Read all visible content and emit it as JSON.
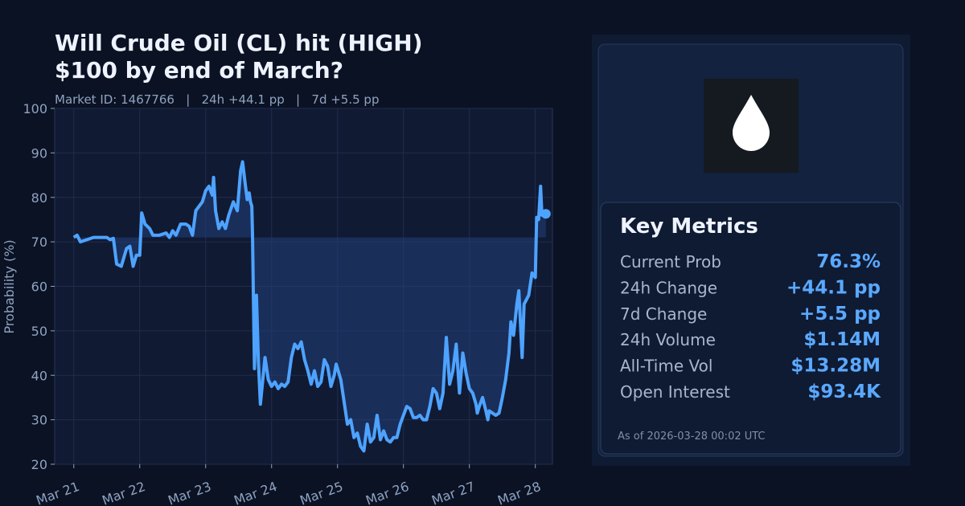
{
  "chart_data": {
    "type": "line",
    "title": [
      "Will Crude Oil (CL) hit (HIGH)",
      "$100 by end of March?"
    ],
    "subtitle": "Market ID: 1467766   |   24h +44.1 pp   |   7d +5.5 pp",
    "y_label": "Probability (%)",
    "color": "#4da3ff",
    "grid": true,
    "xlim": [
      -0.29,
      7.26
    ],
    "ylim": [
      20,
      100
    ],
    "yticks": [
      20,
      30,
      40,
      50,
      60,
      70,
      80,
      90,
      100
    ],
    "xticks": [
      {
        "value": 0,
        "label": "Mar 21"
      },
      {
        "value": 1,
        "label": "Mar 22"
      },
      {
        "value": 2,
        "label": "Mar 23"
      },
      {
        "value": 3,
        "label": "Mar 24"
      },
      {
        "value": 4,
        "label": "Mar 25"
      },
      {
        "value": 5,
        "label": "Mar 26"
      },
      {
        "value": 6,
        "label": "Mar 27"
      },
      {
        "value": 7,
        "label": "Mar 28"
      }
    ],
    "x": [
      0,
      0.05,
      0.1,
      0.2,
      0.3,
      0.5,
      0.55,
      0.6,
      0.65,
      0.72,
      0.8,
      0.85,
      0.9,
      0.95,
      1.0,
      1.03,
      1.08,
      1.15,
      1.2,
      1.3,
      1.4,
      1.45,
      1.5,
      1.55,
      1.62,
      1.7,
      1.75,
      1.8,
      1.85,
      1.95,
      2.0,
      2.05,
      2.1,
      2.12,
      2.15,
      2.2,
      2.25,
      2.3,
      2.35,
      2.42,
      2.48,
      2.53,
      2.56,
      2.6,
      2.63,
      2.66,
      2.68,
      2.7,
      2.71,
      2.74,
      2.77,
      2.8,
      2.83,
      2.86,
      2.9,
      2.95,
      3.0,
      3.05,
      3.1,
      3.15,
      3.2,
      3.25,
      3.3,
      3.35,
      3.4,
      3.45,
      3.5,
      3.55,
      3.6,
      3.65,
      3.7,
      3.75,
      3.8,
      3.85,
      3.9,
      3.95,
      3.98,
      4.05,
      4.1,
      4.15,
      4.2,
      4.25,
      4.3,
      4.35,
      4.4,
      4.45,
      4.5,
      4.55,
      4.6,
      4.65,
      4.7,
      4.75,
      4.8,
      4.85,
      4.9,
      4.95,
      5.0,
      5.05,
      5.1,
      5.15,
      5.2,
      5.25,
      5.3,
      5.35,
      5.4,
      5.45,
      5.5,
      5.55,
      5.6,
      5.65,
      5.7,
      5.75,
      5.8,
      5.85,
      5.9,
      5.95,
      6.0,
      6.05,
      6.1,
      6.12,
      6.15,
      6.2,
      6.25,
      6.28,
      6.3,
      6.4,
      6.45,
      6.5,
      6.55,
      6.6,
      6.63,
      6.67,
      6.72,
      6.75,
      6.78,
      6.8,
      6.83,
      6.9,
      6.95,
      7.0,
      7.02,
      7.05,
      7.08,
      7.1,
      7.13,
      7.16
    ],
    "values": [
      71,
      71.5,
      70,
      70.5,
      71,
      71,
      70.5,
      70.8,
      65,
      64.5,
      68.5,
      69,
      64.5,
      67,
      67,
      76.5,
      74,
      73,
      71.5,
      71.5,
      72,
      71,
      72.5,
      71.5,
      74,
      74,
      73.5,
      71.5,
      77,
      79,
      81.5,
      82.5,
      80.5,
      84.5,
      77,
      73,
      74.5,
      73,
      76,
      79,
      77,
      86,
      88,
      83,
      79.5,
      81,
      79,
      78,
      72,
      41.5,
      58,
      43,
      33.5,
      38,
      44,
      39,
      37.5,
      38.5,
      37,
      38,
      37.5,
      38.5,
      44,
      47,
      46,
      47.5,
      43.5,
      41,
      38,
      41,
      37.5,
      38.5,
      43.5,
      42,
      37.5,
      40,
      42.5,
      39,
      34,
      29,
      30,
      26,
      27,
      24,
      23,
      29,
      25,
      26,
      31,
      25.5,
      27.5,
      25.5,
      25,
      26,
      26,
      29,
      31,
      33,
      32.5,
      30.5,
      30.5,
      31,
      30,
      30,
      33,
      37,
      36,
      32.5,
      36,
      48.5,
      38,
      41,
      47,
      36,
      45,
      40.5,
      37,
      36,
      33.5,
      31.5,
      33,
      35,
      32,
      30,
      32,
      31,
      31.5,
      35,
      39,
      45,
      52,
      49,
      56,
      59,
      50,
      44,
      56,
      58,
      63,
      62,
      75.5,
      75,
      82.5,
      76,
      76.5,
      76.3
    ]
  },
  "panel": {
    "heading": "Key Metrics",
    "metrics": [
      {
        "label": "Current Prob",
        "value": "76.3%"
      },
      {
        "label": "24h Change",
        "value": "+44.1 pp"
      },
      {
        "label": "7d Change",
        "value": "+5.5 pp"
      },
      {
        "label": "24h Volume",
        "value": "$1.14M"
      },
      {
        "label": "All-Time Vol",
        "value": "$13.28M"
      },
      {
        "label": "Open Interest",
        "value": "$93.4K"
      }
    ],
    "footnote": "As of 2026-03-28 00:02 UTC"
  }
}
